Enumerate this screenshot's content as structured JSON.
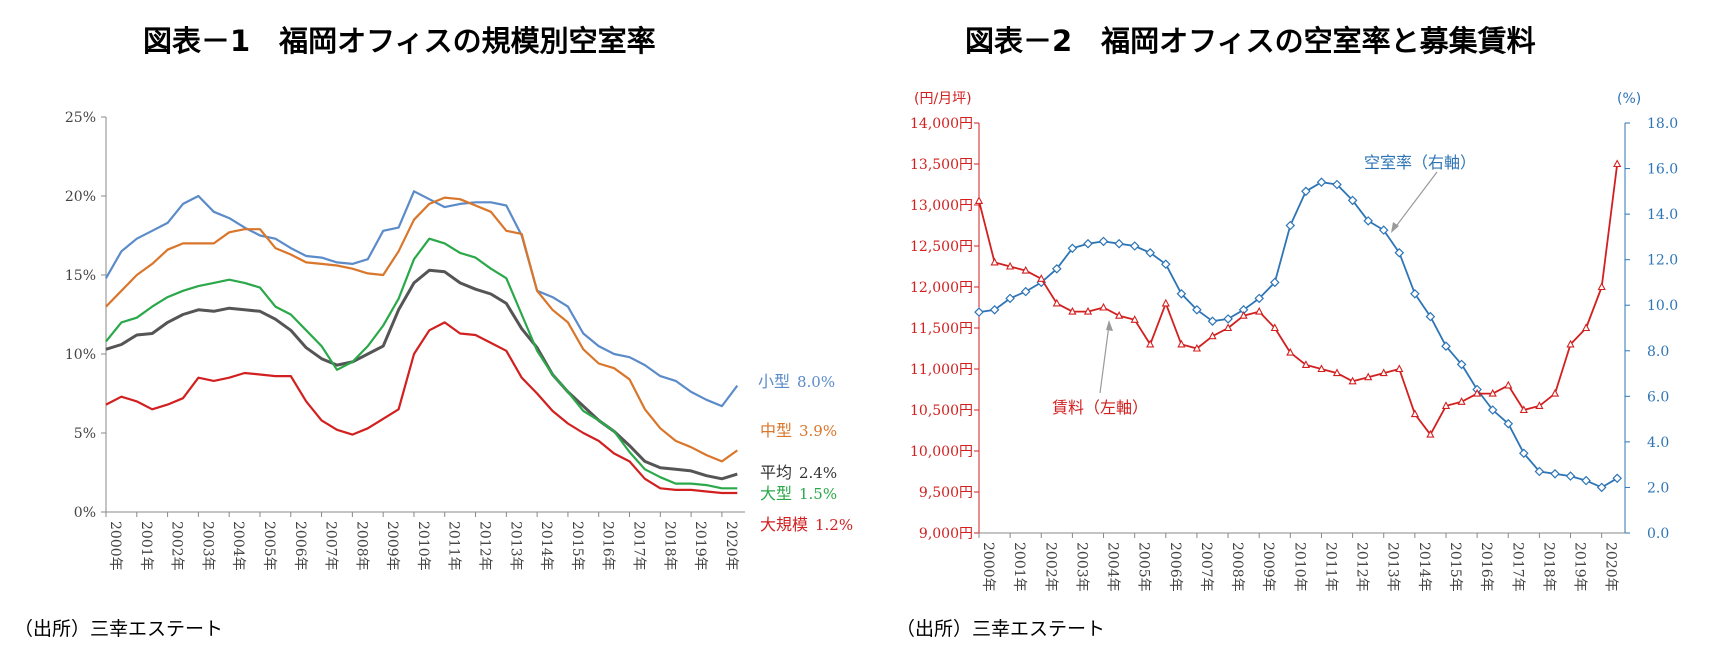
{
  "chart1": {
    "title": "図表－1　福岡オフィスの規模別空室率",
    "source": "（出所）三幸エステート",
    "y_ticks": [
      "0%",
      "5%",
      "10%",
      "15%",
      "20%",
      "25%"
    ],
    "x_ticks": [
      "2000年",
      "2001年",
      "2002年",
      "2003年",
      "2004年",
      "2005年",
      "2006年",
      "2007年",
      "2008年",
      "2009年",
      "2010年",
      "2011年",
      "2012年",
      "2013年",
      "2014年",
      "2015年",
      "2016年",
      "2017年",
      "2018年",
      "2019年",
      "2020年"
    ],
    "colors": {
      "small": "#5B8BC9",
      "medium": "#D9762B",
      "average": "#555555",
      "large": "#2AA84A",
      "xlarge": "#D22020"
    },
    "labels": {
      "small": {
        "name": "小型",
        "value": "8.0%"
      },
      "medium": {
        "name": "中型",
        "value": "3.9%"
      },
      "average": {
        "name": "平均",
        "value": "2.4%"
      },
      "large": {
        "name": "大型",
        "value": "1.5%"
      },
      "xlarge": {
        "name": "大規模",
        "value": "1.2%"
      }
    }
  },
  "chart2": {
    "title": "図表－2　福岡オフィスの空室率と募集賃料",
    "source": "（出所）三幸エステート",
    "left_unit": "(円/月坪)",
    "right_unit": "(%)",
    "left_ticks": [
      "9,000円",
      "9,500円",
      "10,000円",
      "10,500円",
      "11,000円",
      "11,500円",
      "12,000円",
      "12,500円",
      "13,000円",
      "13,500円",
      "14,000円"
    ],
    "right_ticks": [
      "0.0",
      "2.0",
      "4.0",
      "6.0",
      "8.0",
      "10.0",
      "12.0",
      "14.0",
      "16.0",
      "18.0"
    ],
    "x_ticks": [
      "2000年",
      "2001年",
      "2002年",
      "2003年",
      "2004年",
      "2005年",
      "2006年",
      "2007年",
      "2008年",
      "2009年",
      "2010年",
      "2011年",
      "2012年",
      "2013年",
      "2014年",
      "2015年",
      "2016年",
      "2017年",
      "2018年",
      "2019年",
      "2020年"
    ],
    "vacancy_label": "空室率（右軸）",
    "rent_label": "賃料（左軸）",
    "colors": {
      "vacancy": "#2E75B6",
      "rent": "#D22020"
    }
  },
  "chart_data": [
    {
      "type": "line",
      "title": "図表－1　福岡オフィスの規模別空室率",
      "xlabel": "",
      "ylabel": "",
      "ylim": [
        0,
        25
      ],
      "x": [
        2000,
        2000.5,
        2001,
        2001.5,
        2002,
        2002.5,
        2003,
        2003.5,
        2004,
        2004.5,
        2005,
        2005.5,
        2006,
        2006.5,
        2007,
        2007.5,
        2008,
        2008.5,
        2009,
        2009.5,
        2010,
        2010.5,
        2011,
        2011.5,
        2012,
        2012.5,
        2013,
        2013.5,
        2014,
        2014.5,
        2015,
        2015.5,
        2016,
        2016.5,
        2017,
        2017.5,
        2018,
        2018.5,
        2019,
        2019.5,
        2020,
        2020.5
      ],
      "series": [
        {
          "name": "小型",
          "values": [
            14.8,
            16.5,
            17.3,
            17.8,
            18.3,
            19.5,
            20.0,
            19.0,
            18.6,
            18.0,
            17.5,
            17.3,
            16.7,
            16.2,
            16.1,
            15.8,
            15.7,
            16.0,
            17.8,
            18.0,
            20.3,
            19.8,
            19.3,
            19.5,
            19.6,
            19.6,
            19.4,
            17.5,
            14.0,
            13.6,
            13.0,
            11.3,
            10.5,
            10.0,
            9.8,
            9.3,
            8.6,
            8.3,
            7.6,
            7.1,
            6.7,
            8.0
          ]
        },
        {
          "name": "中型",
          "values": [
            13.0,
            14.0,
            15.0,
            15.7,
            16.6,
            17.0,
            17.0,
            17.0,
            17.7,
            17.9,
            17.9,
            16.7,
            16.3,
            15.8,
            15.7,
            15.6,
            15.4,
            15.1,
            15.0,
            16.5,
            18.5,
            19.5,
            19.9,
            19.8,
            19.4,
            19.0,
            17.8,
            17.6,
            14.0,
            12.8,
            12.0,
            10.3,
            9.4,
            9.1,
            8.4,
            6.5,
            5.3,
            4.5,
            4.1,
            3.6,
            3.2,
            3.9
          ]
        },
        {
          "name": "平均",
          "values": [
            10.3,
            10.6,
            11.2,
            11.3,
            12.0,
            12.5,
            12.8,
            12.7,
            12.9,
            12.8,
            12.7,
            12.2,
            11.5,
            10.4,
            9.7,
            9.3,
            9.5,
            10.0,
            10.5,
            12.8,
            14.5,
            15.3,
            15.2,
            14.5,
            14.1,
            13.8,
            13.2,
            11.6,
            10.4,
            8.7,
            7.6,
            6.7,
            5.8,
            5.1,
            4.2,
            3.2,
            2.8,
            2.7,
            2.6,
            2.3,
            2.1,
            2.4
          ]
        },
        {
          "name": "大型",
          "values": [
            10.8,
            12.0,
            12.3,
            13.0,
            13.6,
            14.0,
            14.3,
            14.5,
            14.7,
            14.5,
            14.2,
            13.0,
            12.5,
            11.5,
            10.5,
            9.0,
            9.5,
            10.5,
            11.8,
            13.5,
            16.0,
            17.3,
            17.0,
            16.4,
            16.1,
            15.4,
            14.8,
            12.5,
            10.2,
            8.7,
            7.6,
            6.4,
            5.8,
            5.1,
            3.8,
            2.7,
            2.2,
            1.8,
            1.8,
            1.7,
            1.5,
            1.5
          ]
        },
        {
          "name": "大規模",
          "values": [
            6.8,
            7.3,
            7.0,
            6.5,
            6.8,
            7.2,
            8.5,
            8.3,
            8.5,
            8.8,
            8.7,
            8.6,
            8.6,
            7.0,
            5.8,
            5.2,
            4.9,
            5.3,
            5.9,
            6.5,
            10.0,
            11.5,
            12.0,
            11.3,
            11.2,
            10.7,
            10.2,
            8.5,
            7.5,
            6.4,
            5.6,
            5.0,
            4.5,
            3.7,
            3.2,
            2.1,
            1.5,
            1.4,
            1.4,
            1.3,
            1.2,
            1.2
          ]
        }
      ]
    },
    {
      "type": "line",
      "title": "図表－2　福岡オフィスの空室率と募集賃料",
      "xlabel": "",
      "ylabel": "(円/月坪)",
      "ylim": [
        9000,
        14000
      ],
      "y2label": "(%)",
      "y2lim": [
        0,
        18
      ],
      "x": [
        2000,
        2000.5,
        2001,
        2001.5,
        2002,
        2002.5,
        2003,
        2003.5,
        2004,
        2004.5,
        2005,
        2005.5,
        2006,
        2006.5,
        2007,
        2007.5,
        2008,
        2008.5,
        2009,
        2009.5,
        2010,
        2010.5,
        2011,
        2011.5,
        2012,
        2012.5,
        2013,
        2013.5,
        2014,
        2014.5,
        2015,
        2015.5,
        2016,
        2016.5,
        2017,
        2017.5,
        2018,
        2018.5,
        2019,
        2019.5,
        2020,
        2020.5
      ],
      "series": [
        {
          "name": "空室率（右軸）",
          "axis": "right",
          "values": [
            9.7,
            9.8,
            10.3,
            10.6,
            11.0,
            11.6,
            12.5,
            12.7,
            12.8,
            12.7,
            12.6,
            12.3,
            11.8,
            10.5,
            9.8,
            9.3,
            9.4,
            9.8,
            10.3,
            11.0,
            13.5,
            15.0,
            15.4,
            15.3,
            14.6,
            13.7,
            13.3,
            12.3,
            10.5,
            9.5,
            8.2,
            7.4,
            6.3,
            5.4,
            4.8,
            3.5,
            2.7,
            2.6,
            2.5,
            2.3,
            2.0,
            2.4
          ]
        },
        {
          "name": "賃料（左軸）",
          "axis": "left",
          "values": [
            13050,
            12300,
            12250,
            12200,
            12100,
            11800,
            11700,
            11700,
            11750,
            11650,
            11600,
            11300,
            11800,
            11300,
            11250,
            11400,
            11500,
            11650,
            11700,
            11500,
            11200,
            11050,
            11000,
            10950,
            10850,
            10900,
            10950,
            11000,
            10450,
            10200,
            10550,
            10600,
            10700,
            10700,
            10800,
            10500,
            10550,
            10700,
            11300,
            11500,
            12000,
            13500
          ]
        }
      ]
    }
  ]
}
